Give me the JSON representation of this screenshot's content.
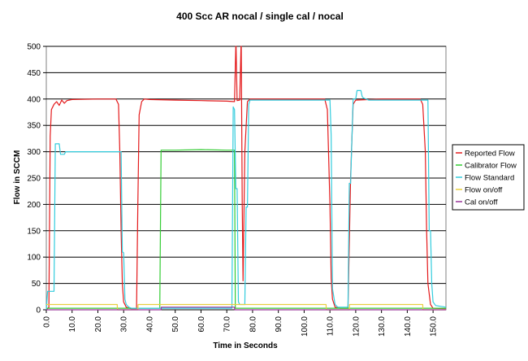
{
  "chart_data": {
    "type": "line",
    "title": "400 Scc AR nocal / single cal / nocal",
    "xlabel": "Time in Seconds",
    "ylabel": "Flow in SCCM",
    "xlim": [
      0,
      155
    ],
    "ylim": [
      0,
      500
    ],
    "x_ticks": [
      0,
      10,
      20,
      30,
      40,
      50,
      60,
      70,
      80,
      90,
      100,
      110,
      120,
      130,
      140,
      150
    ],
    "x_tick_labels": [
      "0.0",
      "10.0",
      "20.0",
      "30.0",
      "40.0",
      "50.0",
      "60.0",
      "70.0",
      "80.0",
      "90.0",
      "100.0",
      "110.0",
      "120.0",
      "130.0",
      "140.0",
      "150.0"
    ],
    "y_ticks": [
      0,
      50,
      100,
      150,
      200,
      250,
      300,
      350,
      400,
      450,
      500
    ],
    "y_tick_labels": [
      "0",
      "50",
      "100",
      "150",
      "200",
      "250",
      "300",
      "350",
      "400",
      "450",
      "500"
    ],
    "grid": "horizontal",
    "legend_position": "right",
    "series": [
      {
        "name": "Reported Flow",
        "color": "#e41a1c",
        "points": [
          [
            0,
            0
          ],
          [
            1,
            5
          ],
          [
            1.5,
            330
          ],
          [
            2,
            380
          ],
          [
            3,
            390
          ],
          [
            4,
            395
          ],
          [
            5,
            388
          ],
          [
            6,
            398
          ],
          [
            7,
            392
          ],
          [
            8,
            397
          ],
          [
            10,
            399
          ],
          [
            20,
            400
          ],
          [
            27,
            400
          ],
          [
            28,
            390
          ],
          [
            28.5,
            300
          ],
          [
            29,
            150
          ],
          [
            29.5,
            50
          ],
          [
            30,
            15
          ],
          [
            31,
            5
          ],
          [
            33,
            2
          ],
          [
            35,
            2
          ],
          [
            35.5,
            200
          ],
          [
            36,
            370
          ],
          [
            37,
            395
          ],
          [
            38,
            400
          ],
          [
            40,
            399
          ],
          [
            50,
            398
          ],
          [
            60,
            397
          ],
          [
            70,
            396
          ],
          [
            73,
            395
          ],
          [
            73.5,
            500
          ],
          [
            73.6,
            500
          ],
          [
            74,
            397
          ],
          [
            75,
            398
          ],
          [
            75.5,
            500
          ],
          [
            75.6,
            500
          ],
          [
            76,
            200
          ],
          [
            76.3,
            55
          ],
          [
            77,
            300
          ],
          [
            78,
            395
          ],
          [
            79,
            400
          ],
          [
            90,
            400
          ],
          [
            100,
            400
          ],
          [
            108,
            400
          ],
          [
            109,
            380
          ],
          [
            110,
            200
          ],
          [
            110.5,
            60
          ],
          [
            111,
            20
          ],
          [
            112,
            5
          ],
          [
            114,
            3
          ],
          [
            117,
            3
          ],
          [
            118,
            250
          ],
          [
            119,
            390
          ],
          [
            120,
            398
          ],
          [
            130,
            400
          ],
          [
            145,
            400
          ],
          [
            146,
            390
          ],
          [
            147,
            300
          ],
          [
            147.5,
            150
          ],
          [
            148,
            50
          ],
          [
            149,
            10
          ],
          [
            150,
            3
          ],
          [
            155,
            2
          ]
        ]
      },
      {
        "name": "Calibrator Flow",
        "color": "#33cc33",
        "points": [
          [
            0,
            3
          ],
          [
            44,
            3
          ],
          [
            44.5,
            303
          ],
          [
            50,
            303
          ],
          [
            60,
            304
          ],
          [
            70,
            303
          ],
          [
            73,
            303
          ],
          [
            73.3,
            3
          ],
          [
            155,
            3
          ]
        ]
      },
      {
        "name": "Flow Standard",
        "color": "#33ccdd",
        "points": [
          [
            0,
            0
          ],
          [
            0.5,
            35
          ],
          [
            3,
            35
          ],
          [
            3.5,
            315
          ],
          [
            5,
            315
          ],
          [
            5.5,
            295
          ],
          [
            7,
            295
          ],
          [
            7.5,
            300
          ],
          [
            28,
            300
          ],
          [
            29,
            300
          ],
          [
            29.5,
            110
          ],
          [
            30,
            108
          ],
          [
            30.5,
            20
          ],
          [
            31,
            10
          ],
          [
            32,
            5
          ],
          [
            33,
            3
          ],
          [
            72,
            3
          ],
          [
            72.5,
            385
          ],
          [
            73,
            380
          ],
          [
            73.5,
            230
          ],
          [
            74,
            230
          ],
          [
            74.5,
            15
          ],
          [
            75,
            10
          ],
          [
            77,
            10
          ],
          [
            77.5,
            195
          ],
          [
            78,
            195
          ],
          [
            78.5,
            390
          ],
          [
            79,
            398
          ],
          [
            110,
            398
          ],
          [
            110.5,
            330
          ],
          [
            111,
            40
          ],
          [
            112,
            10
          ],
          [
            113,
            5
          ],
          [
            117,
            5
          ],
          [
            117.5,
            240
          ],
          [
            118,
            240
          ],
          [
            119,
            400
          ],
          [
            120,
            400
          ],
          [
            120.5,
            416
          ],
          [
            122,
            416
          ],
          [
            122.5,
            405
          ],
          [
            123,
            402
          ],
          [
            125,
            398
          ],
          [
            148,
            398
          ],
          [
            148.5,
            150
          ],
          [
            149,
            150
          ],
          [
            149.5,
            50
          ],
          [
            150,
            15
          ],
          [
            151,
            8
          ],
          [
            155,
            5
          ]
        ]
      },
      {
        "name": "Flow on/off",
        "color": "#e8d040",
        "points": [
          [
            0,
            10
          ],
          [
            27.5,
            10
          ],
          [
            27.6,
            0
          ],
          [
            35.5,
            0
          ],
          [
            35.6,
            10
          ],
          [
            108.5,
            10
          ],
          [
            108.6,
            0
          ],
          [
            117.5,
            0
          ],
          [
            117.6,
            10
          ],
          [
            146,
            10
          ],
          [
            146.1,
            0
          ],
          [
            155,
            0
          ]
        ]
      },
      {
        "name": "Cal on/off",
        "color": "#993399",
        "points": [
          [
            0,
            0
          ],
          [
            44.5,
            0
          ],
          [
            44.6,
            5
          ],
          [
            73,
            5
          ],
          [
            73.1,
            0
          ],
          [
            155,
            0
          ]
        ]
      }
    ]
  }
}
